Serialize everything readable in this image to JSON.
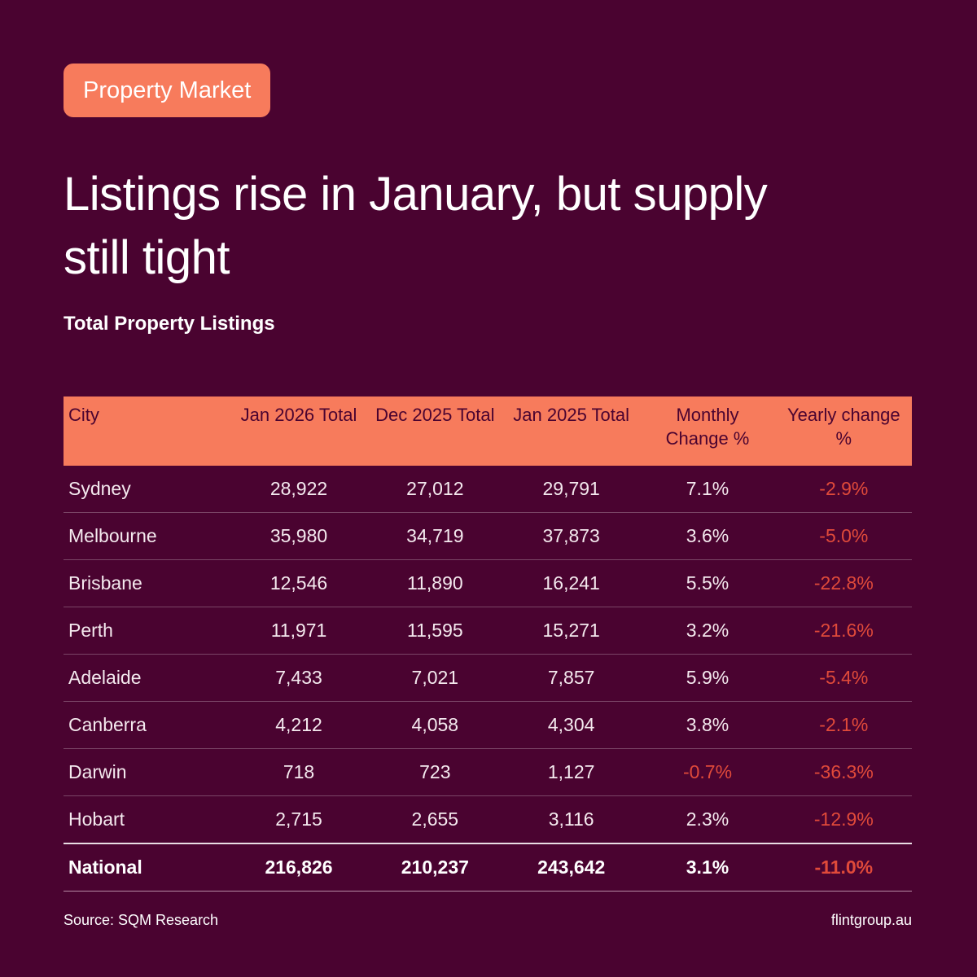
{
  "tag": "Property Market",
  "headline": "Listings rise in January, but supply still tight",
  "subtitle": "Total Property Listings",
  "table": {
    "headers": [
      "City",
      "Jan 2026 Total",
      "Dec 2025 Total",
      "Jan 2025 Total",
      "Monthly Change %",
      "Yearly change %"
    ],
    "rows": [
      [
        "Sydney",
        "28,922",
        "27,012",
        "29,791",
        "7.1%",
        "-2.9%"
      ],
      [
        "Melbourne",
        "35,980",
        "34,719",
        "37,873",
        "3.6%",
        "-5.0%"
      ],
      [
        "Brisbane",
        "12,546",
        "11,890",
        "16,241",
        "5.5%",
        "-22.8%"
      ],
      [
        "Perth",
        "11,971",
        "11,595",
        "15,271",
        "3.2%",
        "-21.6%"
      ],
      [
        "Adelaide",
        "7,433",
        "7,021",
        "7,857",
        "5.9%",
        "-5.4%"
      ],
      [
        "Canberra",
        "4,212",
        "4,058",
        "4,304",
        "3.8%",
        "-2.1%"
      ],
      [
        "Darwin",
        "718",
        "723",
        "1,127",
        "-0.7%",
        "-36.3%"
      ],
      [
        "Hobart",
        "2,715",
        "2,655",
        "3,116",
        "2.3%",
        "-12.9%"
      ]
    ],
    "total": [
      "National",
      "216,826",
      "210,237",
      "243,642",
      "3.1%",
      "-11.0%"
    ]
  },
  "footer": {
    "source": "Source: SQM Research",
    "site": "flintgroup.au"
  },
  "colors": {
    "background": "#4a0330",
    "accent": "#f77b5c",
    "negative": "#e04a3a"
  }
}
